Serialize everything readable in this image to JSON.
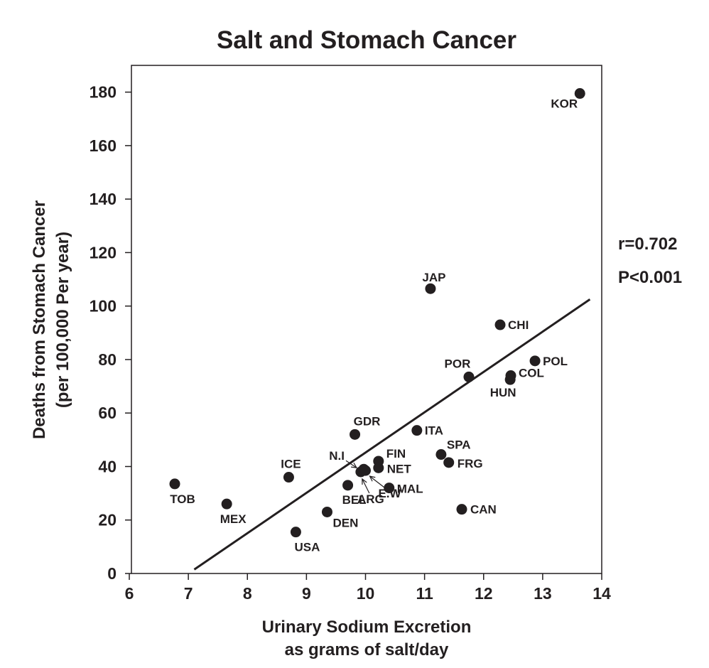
{
  "chart_data": {
    "type": "scatter",
    "title": "Salt and Stomach Cancer",
    "xlabel": [
      "Urinary Sodium Excretion",
      "as grams of salt/day"
    ],
    "ylabel": [
      "Deaths from Stomach Cancer",
      "(per 100,000 Per year)"
    ],
    "xlim": [
      6,
      14
    ],
    "ylim": [
      0,
      190
    ],
    "xticks": [
      "6",
      "7",
      "8",
      "9",
      "10",
      "11",
      "12",
      "13",
      "14"
    ],
    "yticks": [
      "0",
      "20",
      "40",
      "60",
      "80",
      "100",
      "120",
      "140",
      "160",
      "180"
    ],
    "grid": false,
    "points": [
      {
        "label": "KOR",
        "x": 13.63,
        "y": 179.5
      },
      {
        "label": "JAP",
        "x": 11.1,
        "y": 106.5
      },
      {
        "label": "CHI",
        "x": 12.28,
        "y": 93.0
      },
      {
        "label": "POL",
        "x": 12.87,
        "y": 79.5
      },
      {
        "label": "POR",
        "x": 11.75,
        "y": 73.5
      },
      {
        "label": "COL",
        "x": 12.46,
        "y": 74.0
      },
      {
        "label": "HUN",
        "x": 12.45,
        "y": 72.5
      },
      {
        "label": "ITA",
        "x": 10.87,
        "y": 53.5
      },
      {
        "label": "GDR",
        "x": 9.82,
        "y": 52.0
      },
      {
        "label": "SPA",
        "x": 11.28,
        "y": 44.5
      },
      {
        "label": "FRG",
        "x": 11.41,
        "y": 41.5
      },
      {
        "label": "FIN",
        "x": 10.22,
        "y": 42.0
      },
      {
        "label": "NET",
        "x": 10.22,
        "y": 39.5
      },
      {
        "label": "N.I",
        "x": 9.97,
        "y": 39.0
      },
      {
        "label": "ARG",
        "x": 9.92,
        "y": 38.0
      },
      {
        "label": "E.W",
        "x": 10.0,
        "y": 38.5
      },
      {
        "label": "ICE",
        "x": 8.7,
        "y": 36.0
      },
      {
        "label": "TOB",
        "x": 6.77,
        "y": 33.5
      },
      {
        "label": "BEL",
        "x": 9.7,
        "y": 33.0
      },
      {
        "label": "MAL",
        "x": 10.4,
        "y": 32.0
      },
      {
        "label": "MEX",
        "x": 7.65,
        "y": 26.0
      },
      {
        "label": "CAN",
        "x": 11.63,
        "y": 24.0
      },
      {
        "label": "DEN",
        "x": 9.35,
        "y": 23.0
      },
      {
        "label": "USA",
        "x": 8.82,
        "y": 15.5
      }
    ],
    "regression_line": {
      "x": [
        7.1,
        13.8
      ],
      "y": [
        1.5,
        102.5
      ]
    },
    "annotations": [
      "r=0.702",
      "P<0.001"
    ]
  }
}
